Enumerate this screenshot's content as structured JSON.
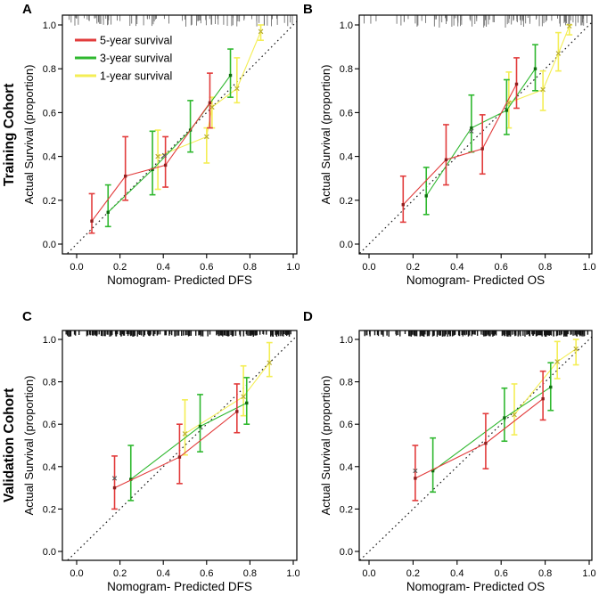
{
  "figure": {
    "background": "#ffffff",
    "rows": [
      {
        "label": "Training Cohort"
      },
      {
        "label": "Validation Cohort"
      }
    ]
  },
  "chart_data": [
    {
      "id": "A",
      "type": "line",
      "panel_letter": "A",
      "row_label": "Training Cohort",
      "xlabel": "Nomogram- Predicted DFS",
      "ylabel": "Actual Survival (proportion)",
      "xlim": [
        0.0,
        1.0
      ],
      "ylim": [
        0.0,
        1.0
      ],
      "xtick_labels": [
        "0.0",
        "0.2",
        "0.4",
        "0.6",
        "0.8",
        "1.0"
      ],
      "ytick_labels": [
        "0.0",
        "0.2",
        "0.4",
        "0.6",
        "0.8",
        "1.0"
      ],
      "grid": false,
      "reference_line": "diagonal-dotted",
      "reference_color": "#1c1c1c",
      "legend": {
        "position": "top-left",
        "items": [
          {
            "label": "5-year survival",
            "color": "#e23c3c"
          },
          {
            "label": "3-year survival",
            "color": "#2fb82f"
          },
          {
            "label": "1-year survival",
            "color": "#f4ee55"
          }
        ]
      },
      "rug": {
        "side": "top",
        "count": 90,
        "color": "#6e6e6e",
        "line_width": 0.9,
        "min_len": 3,
        "max_len": 13,
        "seed": 13,
        "bias": 0.95
      },
      "series": [
        {
          "name": "5-year survival",
          "color": "#e23c3c",
          "marker": "dot",
          "marker_color": "#8f1f1f",
          "points": [
            {
              "x": 0.07,
              "y": 0.105,
              "lo": 0.05,
              "hi": 0.23
            },
            {
              "x": 0.225,
              "y": 0.31,
              "lo": 0.2,
              "hi": 0.49
            },
            {
              "x": 0.41,
              "y": 0.36,
              "lo": 0.26,
              "hi": 0.49
            },
            {
              "x": 0.615,
              "y": 0.645,
              "lo": 0.53,
              "hi": 0.78
            }
          ]
        },
        {
          "name": "3-year survival",
          "color": "#2fb82f",
          "marker": "dot",
          "marker_color": "#0e6b0e",
          "points": [
            {
              "x": 0.145,
              "y": 0.145,
              "lo": 0.08,
              "hi": 0.27
            },
            {
              "x": 0.35,
              "y": 0.34,
              "lo": 0.225,
              "hi": 0.515
            },
            {
              "x": 0.525,
              "y": 0.52,
              "lo": 0.42,
              "hi": 0.655
            },
            {
              "x": 0.71,
              "y": 0.77,
              "lo": 0.67,
              "hi": 0.89
            }
          ]
        },
        {
          "name": "1-year survival",
          "color": "#f4ee55",
          "marker": "x",
          "marker_color": "#b9ae35",
          "points": [
            {
              "x": 0.375,
              "y": 0.4,
              "lo": 0.25,
              "hi": 0.52
            },
            {
              "x": 0.6,
              "y": 0.49,
              "lo": 0.37,
              "hi": 0.53
            },
            {
              "x": 0.625,
              "y": 0.625,
              "lo": 0.53,
              "hi": 0.67
            },
            {
              "x": 0.74,
              "y": 0.71,
              "lo": 0.645,
              "hi": 0.85
            },
            {
              "x": 0.85,
              "y": 0.97,
              "lo": 0.93,
              "hi": 1.0
            }
          ]
        }
      ],
      "extra_markers": [
        {
          "x": 0.405,
          "y": 0.405,
          "color": "#555555"
        }
      ]
    },
    {
      "id": "B",
      "type": "line",
      "panel_letter": "B",
      "row_label": "",
      "xlabel": "Nomogram- Predicted OS",
      "ylabel": "Actual Survival (proportion)",
      "xlim": [
        0.0,
        1.0
      ],
      "ylim": [
        0.0,
        1.0
      ],
      "xtick_labels": [
        "0.0",
        "0.2",
        "0.4",
        "0.6",
        "0.8",
        "1.0"
      ],
      "ytick_labels": [
        "0.0",
        "0.2",
        "0.4",
        "0.6",
        "0.8",
        "1.0"
      ],
      "grid": false,
      "reference_line": "diagonal-dotted",
      "reference_color": "#1c1c1c",
      "legend": null,
      "rug": {
        "side": "top",
        "count": 100,
        "color": "#6e6e6e",
        "line_width": 0.9,
        "min_len": 3,
        "max_len": 14,
        "seed": 29,
        "bias": 0.72
      },
      "series": [
        {
          "name": "5-year survival",
          "color": "#e23c3c",
          "marker": "dot",
          "marker_color": "#8f1f1f",
          "points": [
            {
              "x": 0.155,
              "y": 0.18,
              "lo": 0.1,
              "hi": 0.31
            },
            {
              "x": 0.35,
              "y": 0.385,
              "lo": 0.27,
              "hi": 0.545
            },
            {
              "x": 0.515,
              "y": 0.435,
              "lo": 0.32,
              "hi": 0.59
            },
            {
              "x": 0.67,
              "y": 0.73,
              "lo": 0.62,
              "hi": 0.85
            }
          ]
        },
        {
          "name": "3-year survival",
          "color": "#2fb82f",
          "marker": "dot",
          "marker_color": "#0e6b0e",
          "points": [
            {
              "x": 0.26,
              "y": 0.22,
              "lo": 0.135,
              "hi": 0.35
            },
            {
              "x": 0.465,
              "y": 0.53,
              "lo": 0.42,
              "hi": 0.68
            },
            {
              "x": 0.625,
              "y": 0.61,
              "lo": 0.5,
              "hi": 0.75
            },
            {
              "x": 0.755,
              "y": 0.8,
              "lo": 0.7,
              "hi": 0.91
            }
          ]
        },
        {
          "name": "1-year survival",
          "color": "#f4ee55",
          "marker": "x",
          "marker_color": "#b9ae35",
          "points": [
            {
              "x": 0.635,
              "y": 0.645,
              "lo": 0.53,
              "hi": 0.785
            },
            {
              "x": 0.79,
              "y": 0.705,
              "lo": 0.61,
              "hi": 0.79
            },
            {
              "x": 0.86,
              "y": 0.87,
              "lo": 0.79,
              "hi": 0.965
            },
            {
              "x": 0.91,
              "y": 0.995,
              "lo": 0.955,
              "hi": 1.0
            }
          ]
        }
      ],
      "extra_markers": [
        {
          "x": 0.465,
          "y": 0.515,
          "color": "#555555"
        }
      ]
    },
    {
      "id": "C",
      "type": "line",
      "panel_letter": "C",
      "row_label": "Validation Cohort",
      "xlabel": "Nomogram- Predicted DFS",
      "ylabel": "Actual Survival (proportion)",
      "xlim": [
        0.0,
        1.0
      ],
      "ylim": [
        0.0,
        1.0
      ],
      "xtick_labels": [
        "0.0",
        "0.2",
        "0.4",
        "0.6",
        "0.8",
        "1.0"
      ],
      "ytick_labels": [
        "0.0",
        "0.2",
        "0.4",
        "0.6",
        "0.8",
        "1.0"
      ],
      "grid": false,
      "reference_line": "diagonal-dotted",
      "reference_color": "#1c1c1c",
      "legend": null,
      "rug": {
        "side": "top",
        "count": 210,
        "color": "#141414",
        "line_width": 1.4,
        "min_len": 4,
        "max_len": 7,
        "seed": 47,
        "bias": 0.88
      },
      "series": [
        {
          "name": "5-year survival",
          "color": "#e23c3c",
          "marker": "dot",
          "marker_color": "#8f1f1f",
          "points": [
            {
              "x": 0.175,
              "y": 0.3,
              "lo": 0.2,
              "hi": 0.45
            },
            {
              "x": 0.475,
              "y": 0.445,
              "lo": 0.32,
              "hi": 0.6
            },
            {
              "x": 0.74,
              "y": 0.66,
              "lo": 0.56,
              "hi": 0.79
            }
          ]
        },
        {
          "name": "3-year survival",
          "color": "#2fb82f",
          "marker": "dot",
          "marker_color": "#0e6b0e",
          "points": [
            {
              "x": 0.25,
              "y": 0.34,
              "lo": 0.24,
              "hi": 0.5
            },
            {
              "x": 0.57,
              "y": 0.59,
              "lo": 0.47,
              "hi": 0.74
            },
            {
              "x": 0.785,
              "y": 0.7,
              "lo": 0.6,
              "hi": 0.82
            }
          ]
        },
        {
          "name": "1-year survival",
          "color": "#f4ee55",
          "marker": "x",
          "marker_color": "#b9ae35",
          "points": [
            {
              "x": 0.5,
              "y": 0.555,
              "lo": 0.455,
              "hi": 0.715
            },
            {
              "x": 0.77,
              "y": 0.73,
              "lo": 0.64,
              "hi": 0.875
            },
            {
              "x": 0.89,
              "y": 0.89,
              "lo": 0.825,
              "hi": 0.985
            }
          ]
        }
      ],
      "extra_markers": [
        {
          "x": 0.175,
          "y": 0.345,
          "color": "#555555"
        }
      ]
    },
    {
      "id": "D",
      "type": "line",
      "panel_letter": "D",
      "row_label": "",
      "xlabel": "Nomogram- Predicted OS",
      "ylabel": "Actual Survival (proportion)",
      "xlim": [
        0.0,
        1.0
      ],
      "ylim": [
        0.0,
        1.0
      ],
      "xtick_labels": [
        "0.0",
        "0.2",
        "0.4",
        "0.6",
        "0.8",
        "1.0"
      ],
      "ytick_labels": [
        "0.0",
        "0.2",
        "0.4",
        "0.6",
        "0.8",
        "1.0"
      ],
      "grid": false,
      "reference_line": "diagonal-dotted",
      "reference_color": "#1c1c1c",
      "legend": null,
      "rug": {
        "side": "top",
        "count": 210,
        "color": "#141414",
        "line_width": 1.4,
        "min_len": 4,
        "max_len": 7,
        "seed": 61,
        "bias": 0.8
      },
      "series": [
        {
          "name": "5-year survival",
          "color": "#e23c3c",
          "marker": "dot",
          "marker_color": "#8f1f1f",
          "points": [
            {
              "x": 0.21,
              "y": 0.345,
              "lo": 0.24,
              "hi": 0.5
            },
            {
              "x": 0.53,
              "y": 0.51,
              "lo": 0.39,
              "hi": 0.65
            },
            {
              "x": 0.79,
              "y": 0.72,
              "lo": 0.62,
              "hi": 0.85
            }
          ]
        },
        {
          "name": "3-year survival",
          "color": "#2fb82f",
          "marker": "dot",
          "marker_color": "#0e6b0e",
          "points": [
            {
              "x": 0.29,
              "y": 0.38,
              "lo": 0.28,
              "hi": 0.535
            },
            {
              "x": 0.615,
              "y": 0.63,
              "lo": 0.52,
              "hi": 0.77
            },
            {
              "x": 0.825,
              "y": 0.775,
              "lo": 0.665,
              "hi": 0.89
            }
          ]
        },
        {
          "name": "1-year survival",
          "color": "#f4ee55",
          "marker": "x",
          "marker_color": "#b9ae35",
          "points": [
            {
              "x": 0.66,
              "y": 0.645,
              "lo": 0.55,
              "hi": 0.79
            },
            {
              "x": 0.855,
              "y": 0.895,
              "lo": 0.815,
              "hi": 0.99
            },
            {
              "x": 0.94,
              "y": 0.955,
              "lo": 0.88,
              "hi": 1.0
            }
          ]
        }
      ],
      "extra_markers": [
        {
          "x": 0.21,
          "y": 0.38,
          "color": "#555555"
        }
      ]
    }
  ]
}
